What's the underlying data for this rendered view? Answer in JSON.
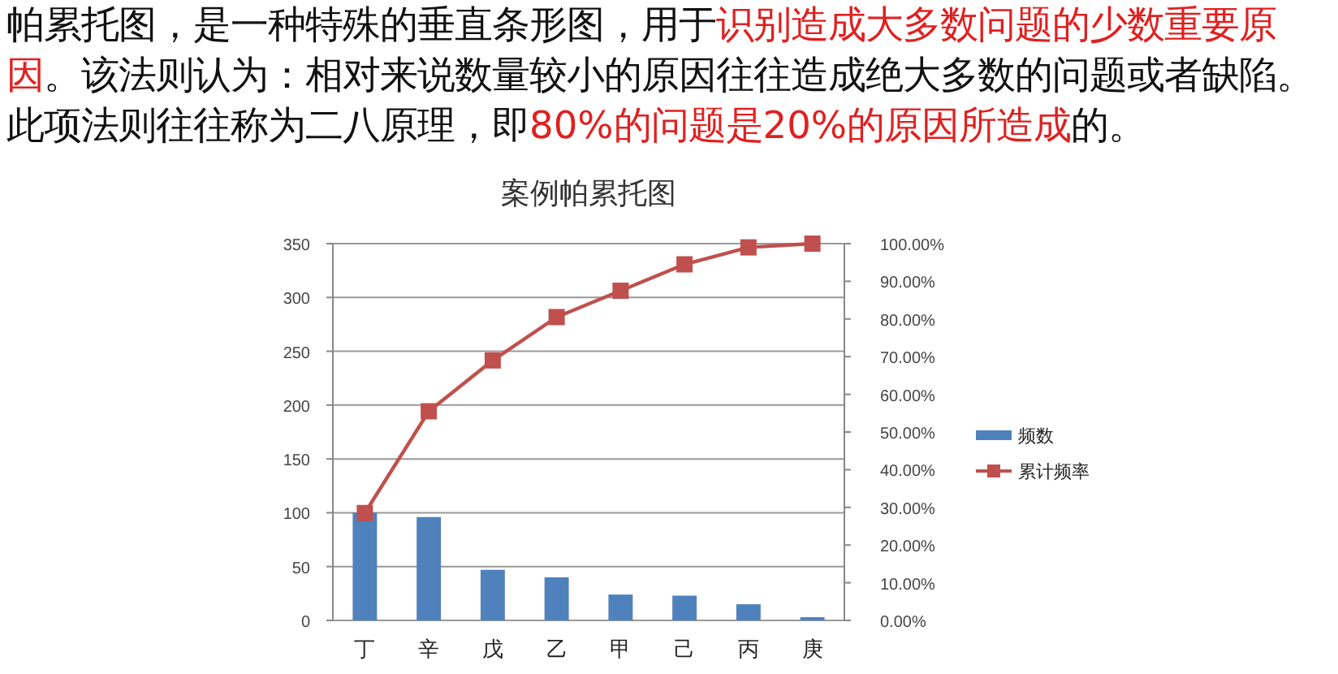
{
  "chart_data": {
    "type": "bar",
    "title": "案例帕累托图",
    "annotations": [
      "帕累托图，是一种特殊的垂直条形图，用于**识别造成大多数问题的少数重要原因**。该法则认为：相对来说数量较小的原因往往造成绝大多数的问题或者缺陷。此项法则往往称为二八原理，即**80%的问题是20%的原因所造成**的。"
    ],
    "categories": [
      "丁",
      "辛",
      "戊",
      "乙",
      "甲",
      "己",
      "丙",
      "庚"
    ],
    "series": [
      {
        "name": "频数",
        "color": "#4f81bd",
        "values": [
          100,
          96,
          47,
          40,
          24,
          23,
          15,
          3
        ]
      },
      {
        "name": "累计频率",
        "type": "line",
        "axis": "y2",
        "color": "#c0504d",
        "values": [
          28.5,
          55.5,
          69,
          80.5,
          87.5,
          94.5,
          99,
          100
        ]
      }
    ],
    "ylim": [
      0,
      350
    ],
    "yticks": [
      0,
      50,
      100,
      150,
      200,
      250,
      300,
      350
    ],
    "y2lim": [
      0,
      100
    ],
    "y2ticks": [
      {
        "value": 0,
        "label": "0.00%"
      },
      {
        "value": 10,
        "label": "10.00%"
      },
      {
        "value": 20,
        "label": "20.00%"
      },
      {
        "value": 30,
        "label": "30.00%"
      },
      {
        "value": 40,
        "label": "40.00%"
      },
      {
        "value": 50,
        "label": "50.00%"
      },
      {
        "value": 60,
        "label": "60.00%"
      },
      {
        "value": 70,
        "label": "70.00%"
      },
      {
        "value": 80,
        "label": "80.00%"
      },
      {
        "value": 90,
        "label": "90.00%"
      },
      {
        "value": 100,
        "label": "100.00%"
      }
    ],
    "grid": "y",
    "legend": "right",
    "marker": "square"
  }
}
